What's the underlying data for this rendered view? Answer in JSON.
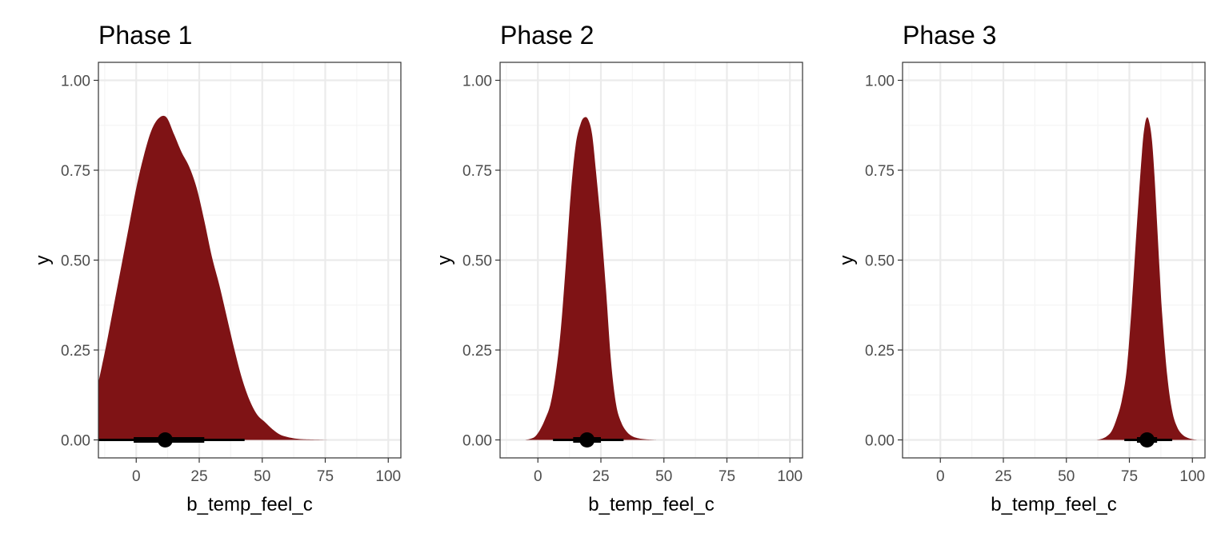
{
  "colors": {
    "fill": "#7f1315",
    "interval": "#000000",
    "point": "#000000",
    "grid_major": "#ebebeb",
    "grid_minor": "#f5f5f5",
    "border": "#333333"
  },
  "chart_data": [
    {
      "type": "area",
      "title": "Phase 1",
      "xlabel": "b_temp_feel_c",
      "ylabel": "y",
      "xlim": [
        -15,
        105
      ],
      "ylim": [
        -0.05,
        1.05
      ],
      "xticks": [
        0,
        25,
        50,
        75,
        100
      ],
      "xtick_labels": [
        "0",
        "25",
        "50",
        "75",
        "100"
      ],
      "yticks": [
        0,
        0.25,
        0.5,
        0.75,
        1.0
      ],
      "ytick_labels": [
        "0.00",
        "0.25",
        "0.50",
        "0.75",
        "1.00"
      ],
      "grid": true,
      "density": {
        "x": [
          -15,
          -12,
          -9,
          -6,
          -3,
          0,
          3,
          6,
          9,
          12,
          15,
          18,
          21,
          24,
          27,
          30,
          33,
          36,
          39,
          42,
          45,
          48,
          51,
          54,
          57,
          60,
          63,
          66,
          70,
          73,
          76
        ],
        "y": [
          0.16,
          0.26,
          0.37,
          0.48,
          0.59,
          0.7,
          0.79,
          0.86,
          0.895,
          0.897,
          0.85,
          0.8,
          0.76,
          0.7,
          0.61,
          0.51,
          0.43,
          0.34,
          0.25,
          0.17,
          0.11,
          0.07,
          0.05,
          0.03,
          0.015,
          0.008,
          0.004,
          0.002,
          0.001,
          0.0005,
          0.0
        ]
      },
      "point_estimate": 11.5,
      "interval_66": [
        -1,
        27
      ],
      "interval_95": [
        -15,
        43
      ]
    },
    {
      "type": "area",
      "title": "Phase 2",
      "xlabel": "b_temp_feel_c",
      "ylabel": "y",
      "xlim": [
        -15,
        105
      ],
      "ylim": [
        -0.05,
        1.05
      ],
      "xticks": [
        0,
        25,
        50,
        75,
        100
      ],
      "xtick_labels": [
        "0",
        "25",
        "50",
        "75",
        "100"
      ],
      "yticks": [
        0,
        0.25,
        0.5,
        0.75,
        1.0
      ],
      "ytick_labels": [
        "0.00",
        "0.25",
        "0.50",
        "0.75",
        "1.00"
      ],
      "grid": true,
      "density": {
        "x": [
          -5,
          -3,
          -1,
          1,
          3,
          5,
          7,
          9,
          11,
          13,
          15,
          17,
          18.5,
          20,
          21.5,
          23,
          25,
          27,
          29,
          31,
          33,
          35,
          37,
          39,
          41,
          44,
          47
        ],
        "y": [
          0.0,
          0.003,
          0.01,
          0.03,
          0.06,
          0.1,
          0.18,
          0.3,
          0.48,
          0.68,
          0.82,
          0.88,
          0.897,
          0.89,
          0.85,
          0.75,
          0.6,
          0.42,
          0.22,
          0.1,
          0.05,
          0.025,
          0.012,
          0.006,
          0.003,
          0.001,
          0.0
        ]
      },
      "point_estimate": 19.5,
      "interval_66": [
        14,
        25
      ],
      "interval_95": [
        6,
        34
      ]
    },
    {
      "type": "area",
      "title": "Phase 3",
      "xlabel": "b_temp_feel_c",
      "ylabel": "y",
      "xlim": [
        -15,
        105
      ],
      "ylim": [
        -0.05,
        1.05
      ],
      "xticks": [
        0,
        25,
        50,
        75,
        100
      ],
      "xtick_labels": [
        "0",
        "25",
        "50",
        "75",
        "100"
      ],
      "yticks": [
        0,
        0.25,
        0.5,
        0.75,
        1.0
      ],
      "ytick_labels": [
        "0.00",
        "0.25",
        "0.50",
        "0.75",
        "1.00"
      ],
      "grid": true,
      "density": {
        "x": [
          62,
          64,
          66,
          68,
          70,
          72,
          74,
          76,
          78,
          80,
          81,
          82,
          83,
          84,
          85,
          86,
          87,
          88,
          90,
          92,
          94,
          96,
          98,
          100,
          102
        ],
        "y": [
          0.0,
          0.003,
          0.01,
          0.025,
          0.06,
          0.11,
          0.2,
          0.38,
          0.6,
          0.8,
          0.87,
          0.897,
          0.88,
          0.83,
          0.73,
          0.6,
          0.47,
          0.35,
          0.18,
          0.08,
          0.035,
          0.015,
          0.006,
          0.002,
          0.0
        ]
      },
      "point_estimate": 82,
      "interval_66": [
        78,
        86
      ],
      "interval_95": [
        73,
        92
      ]
    }
  ]
}
